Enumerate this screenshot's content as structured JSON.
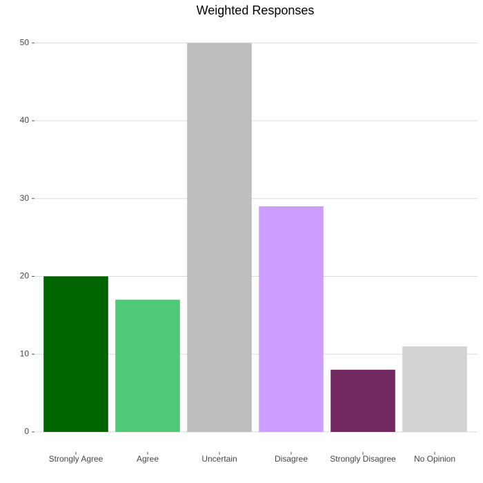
{
  "chart_data": {
    "type": "bar",
    "title": "Weighted Responses",
    "categories": [
      "Strongly Agree",
      "Agree",
      "Uncertain",
      "Disagree",
      "Strongly Disagree",
      "No Opinion"
    ],
    "values": [
      20,
      17,
      50,
      29,
      8,
      11
    ],
    "colors": [
      "#006400",
      "#50c878",
      "#bebebe",
      "#cc9fff",
      "#722860",
      "#d3d3d3"
    ],
    "ylim": [
      0,
      52.5
    ],
    "yticks": [
      0,
      10,
      20,
      30,
      40,
      50
    ],
    "grid": true
  }
}
